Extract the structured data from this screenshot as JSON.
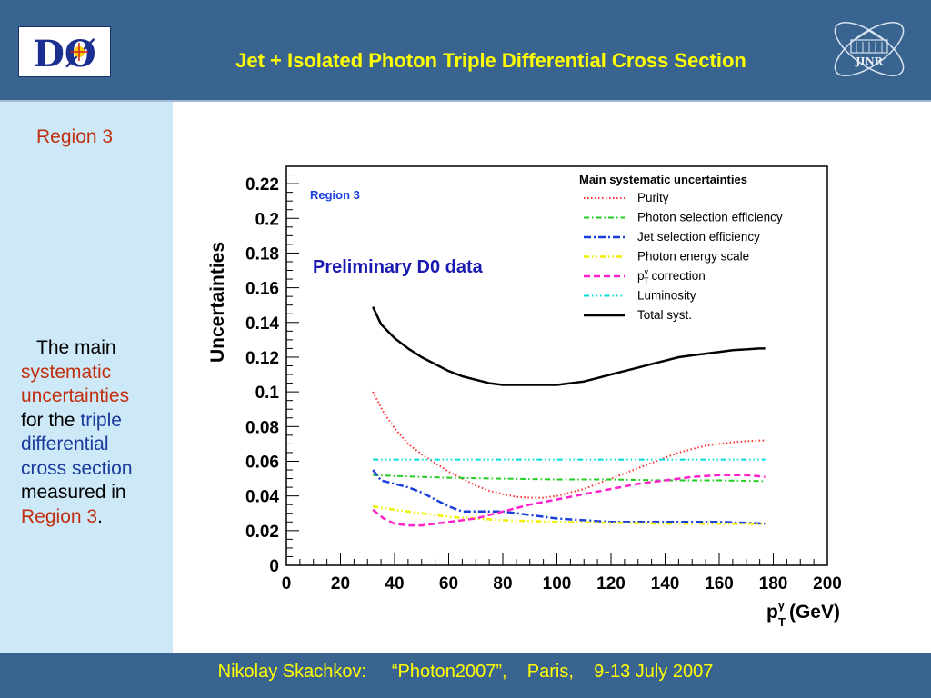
{
  "header": {
    "title": "Jet + Isolated Photon Triple Differential Cross Section",
    "logo_left_text": "DØ",
    "logo_right_text": "JINR"
  },
  "sidebar": {
    "region_label": "Region 3",
    "desc": {
      "p1": "The main",
      "p2": "systematic",
      "p3": "uncertainties",
      "p4": "for the",
      "p5": "triple",
      "p6": "differential",
      "p7": "cross section",
      "p8": "measured in",
      "p9": "Region 3",
      "p10": "."
    }
  },
  "footer": {
    "text": "Nikolay Skachkov:     “Photon2007”,    Paris,    9-13 July 2007"
  },
  "chart_data": {
    "type": "line",
    "region_label": "Region 3",
    "annotation": "Preliminary D0 data",
    "ylabel": "Uncertainties",
    "xlabel_main": "p",
    "xlabel_sub": "T",
    "xlabel_sup": "γ",
    "xlabel_unit": "(GeV)",
    "xlim": [
      0,
      200
    ],
    "ylim": [
      0,
      0.23
    ],
    "xticks": [
      "0",
      "20",
      "40",
      "60",
      "80",
      "100",
      "120",
      "140",
      "160",
      "180",
      "200"
    ],
    "yticks": [
      "0",
      "0.02",
      "0.04",
      "0.06",
      "0.08",
      "0.1",
      "0.12",
      "0.14",
      "0.16",
      "0.18",
      "0.2",
      "0.22"
    ],
    "grid": false,
    "legend_title": "Main systematic uncertainties",
    "legend_position": "top-right",
    "series": [
      {
        "name": "Purity",
        "color": "#ff3030",
        "dash": "1.5,2.5",
        "width": 2,
        "x": [
          32,
          36,
          40,
          45,
          50,
          55,
          60,
          65,
          70,
          75,
          80,
          85,
          90,
          95,
          100,
          105,
          110,
          115,
          120,
          125,
          130,
          135,
          140,
          145,
          150,
          155,
          160,
          165,
          170,
          175,
          177
        ],
        "y": [
          0.1,
          0.088,
          0.079,
          0.07,
          0.064,
          0.059,
          0.054,
          0.05,
          0.046,
          0.043,
          0.041,
          0.0395,
          0.039,
          0.039,
          0.04,
          0.042,
          0.044,
          0.047,
          0.05,
          0.053,
          0.056,
          0.059,
          0.062,
          0.065,
          0.067,
          0.069,
          0.07,
          0.071,
          0.0715,
          0.072,
          0.072
        ]
      },
      {
        "name": "Photon selection efficiency",
        "color": "#22cc22",
        "dash": "6,3,1.5,3",
        "width": 2,
        "x": [
          32,
          40,
          50,
          60,
          80,
          100,
          120,
          140,
          160,
          177
        ],
        "y": [
          0.052,
          0.0515,
          0.051,
          0.0505,
          0.05,
          0.0495,
          0.0495,
          0.049,
          0.049,
          0.0485
        ]
      },
      {
        "name": "Jet selection efficiency",
        "color": "#1a3fdd",
        "dash": "8,3,2,3",
        "width": 2.5,
        "x": [
          32,
          35,
          40,
          45,
          50,
          55,
          60,
          65,
          70,
          80,
          90,
          100,
          110,
          120,
          130,
          140,
          150,
          160,
          170,
          177
        ],
        "y": [
          0.055,
          0.049,
          0.047,
          0.045,
          0.042,
          0.038,
          0.034,
          0.031,
          0.031,
          0.031,
          0.029,
          0.027,
          0.026,
          0.025,
          0.025,
          0.025,
          0.025,
          0.025,
          0.0245,
          0.024
        ]
      },
      {
        "name": "Photon energy scale",
        "color": "#f0f000",
        "dash": "6,3,1.5,3,1.5,3",
        "width": 2.5,
        "x": [
          32,
          40,
          50,
          60,
          80,
          100,
          120,
          140,
          160,
          177
        ],
        "y": [
          0.034,
          0.032,
          0.03,
          0.028,
          0.026,
          0.025,
          0.0245,
          0.024,
          0.024,
          0.024
        ]
      },
      {
        "name": "correction",
        "name_prefix": "p",
        "name_sub": "T",
        "name_sup": "γ",
        "color": "#ff22cc",
        "dash": "7,4",
        "width": 2.5,
        "x": [
          32,
          36,
          40,
          45,
          50,
          55,
          60,
          65,
          70,
          75,
          80,
          90,
          100,
          110,
          120,
          130,
          140,
          150,
          160,
          170,
          177
        ],
        "y": [
          0.032,
          0.027,
          0.024,
          0.023,
          0.023,
          0.024,
          0.025,
          0.026,
          0.027,
          0.029,
          0.031,
          0.035,
          0.038,
          0.041,
          0.044,
          0.047,
          0.049,
          0.051,
          0.052,
          0.052,
          0.051
        ]
      },
      {
        "name": "Luminosity",
        "color": "#00dddd",
        "dash": "6,3,1.5,3,1.5,3,1.5,3",
        "width": 2,
        "x": [
          32,
          177
        ],
        "y": [
          0.061,
          0.061
        ]
      },
      {
        "name": "Total syst.",
        "color": "#000000",
        "dash": "",
        "width": 2.5,
        "x": [
          32,
          35,
          40,
          45,
          50,
          55,
          60,
          65,
          70,
          75,
          80,
          85,
          90,
          95,
          100,
          105,
          110,
          115,
          120,
          125,
          130,
          135,
          140,
          145,
          150,
          155,
          160,
          165,
          170,
          175,
          177
        ],
        "y": [
          0.149,
          0.139,
          0.131,
          0.125,
          0.12,
          0.116,
          0.112,
          0.109,
          0.107,
          0.105,
          0.104,
          0.104,
          0.104,
          0.104,
          0.104,
          0.105,
          0.106,
          0.108,
          0.11,
          0.112,
          0.114,
          0.116,
          0.118,
          0.12,
          0.121,
          0.122,
          0.123,
          0.124,
          0.1245,
          0.125,
          0.125
        ]
      }
    ]
  }
}
